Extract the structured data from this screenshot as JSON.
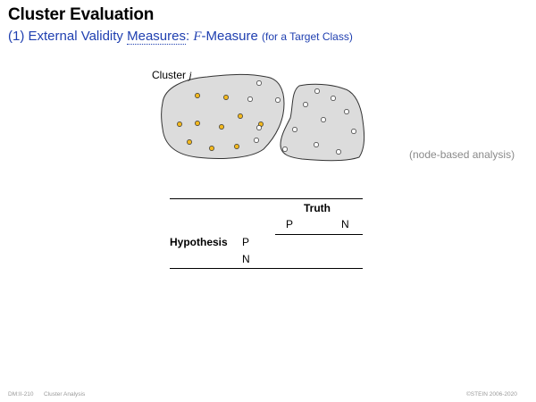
{
  "header": {
    "title": "Cluster Evaluation",
    "subtitle_prefix": "(1) External Validity ",
    "subtitle_link": "Measures",
    "subtitle_colon": ": ",
    "subtitle_math": "F",
    "subtitle_rest": "-Measure ",
    "subtitle_small": "(for a Target Class)"
  },
  "figure": {
    "cluster_label": "Cluster ",
    "cluster_var": "j",
    "note": "(node-based analysis)",
    "colors": {
      "blob_fill": "#dcdcdc",
      "target_node": "#f2b81f",
      "other_node": "#ffffff"
    }
  },
  "table": {
    "truth_label": "Truth",
    "hypothesis_label": "Hypothesis",
    "col_p": "P",
    "col_n": "N",
    "row_p": "P",
    "row_n": "N"
  },
  "footer": {
    "slide_id": "DM:II-210",
    "section": "Cluster Analysis",
    "copyright": "©STEIN 2006-2020"
  }
}
